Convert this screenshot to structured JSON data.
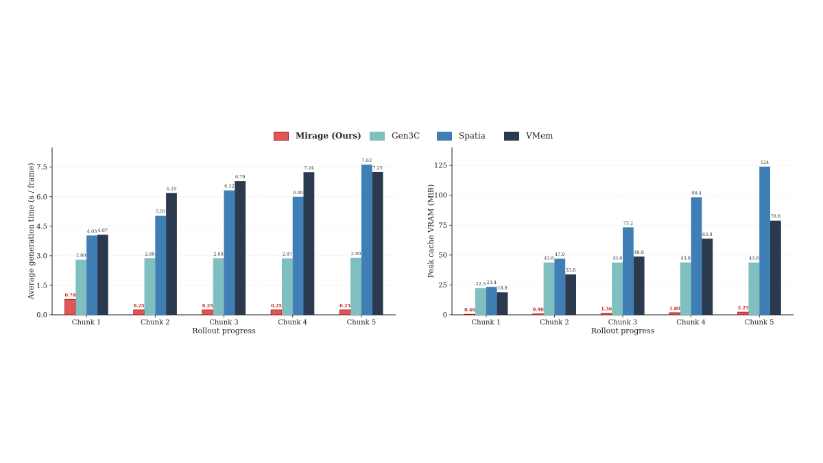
{
  "legend": [
    {
      "name": "Mirage (Ours)",
      "color": "#e05555",
      "bold": true
    },
    {
      "name": "Gen3C",
      "color": "#7fbfbf",
      "bold": false
    },
    {
      "name": "Spatia",
      "color": "#3f7fb5",
      "bold": false
    },
    {
      "name": "VMem",
      "color": "#2b3a4e",
      "bold": false
    }
  ],
  "chart_data": [
    {
      "type": "bar",
      "categories": [
        "Chunk 1",
        "Chunk 2",
        "Chunk 3",
        "Chunk 4",
        "Chunk 5"
      ],
      "xlabel": "Rollout progress",
      "ylabel": "Average generation time  (s / frame)",
      "ylim": [
        0,
        8.5
      ],
      "yticks": [
        "0.0",
        "1.5",
        "3.0",
        "4.5",
        "6.0",
        "7.5"
      ],
      "grid": true,
      "legend_position": "top-center",
      "series": [
        {
          "name": "Mirage (Ours)",
          "color": "#e05555",
          "values": [
            0.79,
            0.25,
            0.25,
            0.25,
            0.25
          ],
          "labels": [
            "0.79",
            "0.25",
            "0.25",
            "0.25",
            "0.25"
          ]
        },
        {
          "name": "Gen3C",
          "color": "#7fbfbf",
          "values": [
            2.8,
            2.88,
            2.88,
            2.87,
            2.9
          ],
          "labels": [
            "2.80",
            "2.88",
            "2.88",
            "2.87",
            "2.90"
          ]
        },
        {
          "name": "Spatia",
          "color": "#3f7fb5",
          "values": [
            4.03,
            5.03,
            6.32,
            6.0,
            7.63
          ],
          "labels": [
            "4.03",
            "5.03",
            "6.32",
            "6.00",
            "7.63"
          ]
        },
        {
          "name": "VMem",
          "color": "#2b3a4e",
          "values": [
            4.07,
            6.19,
            6.79,
            7.24,
            7.25
          ],
          "labels": [
            "4.07",
            "6.19",
            "6.79",
            "7.24",
            "7.25"
          ]
        }
      ]
    },
    {
      "type": "bar",
      "categories": [
        "Chunk 1",
        "Chunk 2",
        "Chunk 3",
        "Chunk 4",
        "Chunk 5"
      ],
      "xlabel": "Rollout progress",
      "ylabel": "Peak cache VRAM  (MiB)",
      "ylim": [
        0,
        140
      ],
      "yticks": [
        "0",
        "25",
        "50",
        "75",
        "100",
        "125"
      ],
      "grid": true,
      "legend_position": "top-center",
      "series": [
        {
          "name": "Mirage (Ours)",
          "color": "#e05555",
          "values": [
            0.46,
            0.9,
            1.36,
            1.8,
            2.25
          ],
          "labels": [
            "0.46",
            "0.90",
            "1.36",
            "1.80",
            "2.25"
          ]
        },
        {
          "name": "Gen3C",
          "color": "#7fbfbf",
          "values": [
            22.3,
            43.8,
            43.8,
            43.8,
            43.8
          ],
          "labels": [
            "22.3",
            "43.8",
            "43.8",
            "43.8",
            "43.8"
          ]
        },
        {
          "name": "Spatia",
          "color": "#3f7fb5",
          "values": [
            23.4,
            47.0,
            73.2,
            98.4,
            124
          ],
          "labels": [
            "23.4",
            "47.0",
            "73.2",
            "98.4",
            "124"
          ]
        },
        {
          "name": "VMem",
          "color": "#2b3a4e",
          "values": [
            18.8,
            33.8,
            48.8,
            63.8,
            78.8
          ],
          "labels": [
            "18.8",
            "33.8",
            "48.8",
            "63.8",
            "78.8"
          ]
        }
      ]
    }
  ]
}
